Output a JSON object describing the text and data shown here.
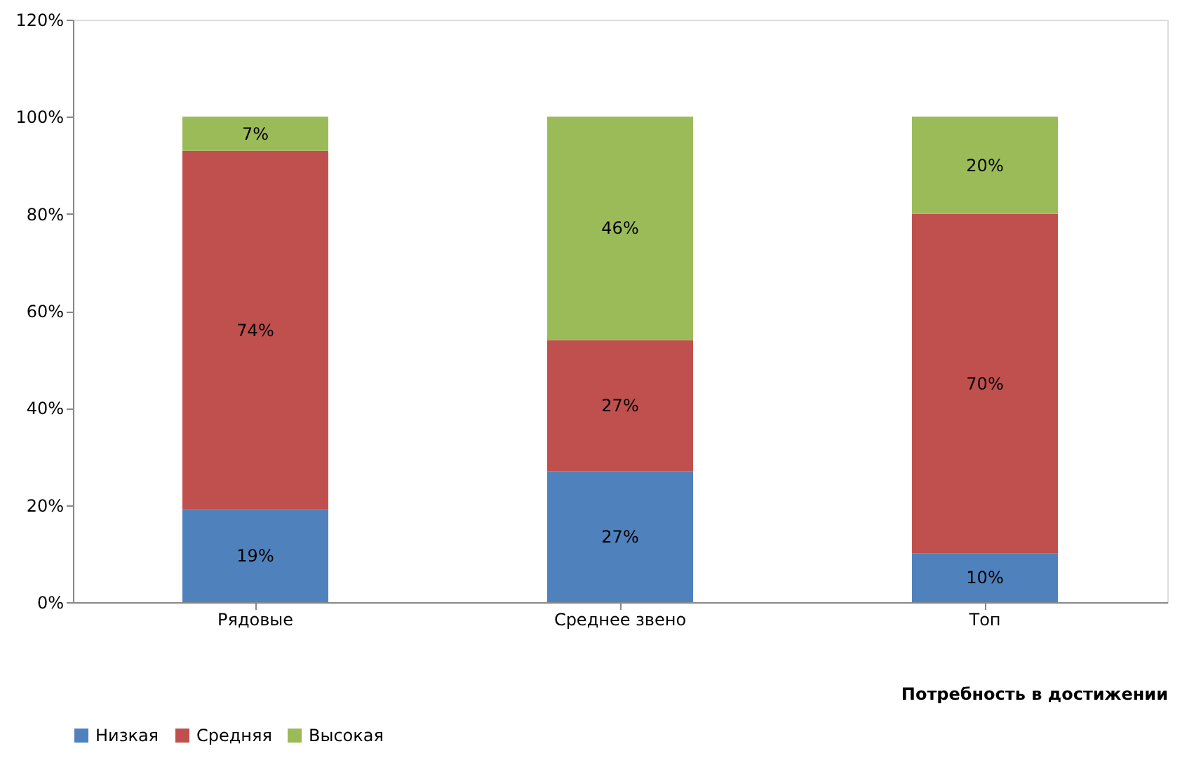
{
  "chart_data": {
    "type": "bar",
    "stacked": true,
    "categories": [
      "Рядовые",
      "Среднее звено",
      "Топ"
    ],
    "series": [
      {
        "name": "Низкая",
        "color": "#4f81bd",
        "values": [
          19,
          27,
          10
        ],
        "value_labels": [
          "19%",
          "27%",
          "10%"
        ]
      },
      {
        "name": "Средняя",
        "color": "#c0504d",
        "values": [
          74,
          27,
          70
        ],
        "value_labels": [
          "74%",
          "27%",
          "70%"
        ]
      },
      {
        "name": "Высокая",
        "color": "#9bbb59",
        "values": [
          7,
          46,
          20
        ],
        "value_labels": [
          "7%",
          "46%",
          "20%"
        ]
      }
    ],
    "xlabel": "Потребность в достижении",
    "ylim": [
      0,
      120
    ],
    "yticks": [
      {
        "value": 0,
        "label": "0%"
      },
      {
        "value": 20,
        "label": "20%"
      },
      {
        "value": 40,
        "label": "40%"
      },
      {
        "value": 60,
        "label": "60%"
      },
      {
        "value": 80,
        "label": "80%"
      },
      {
        "value": 100,
        "label": "100%"
      },
      {
        "value": 120,
        "label": "120%"
      }
    ],
    "grid": false,
    "legend": "bottom"
  }
}
